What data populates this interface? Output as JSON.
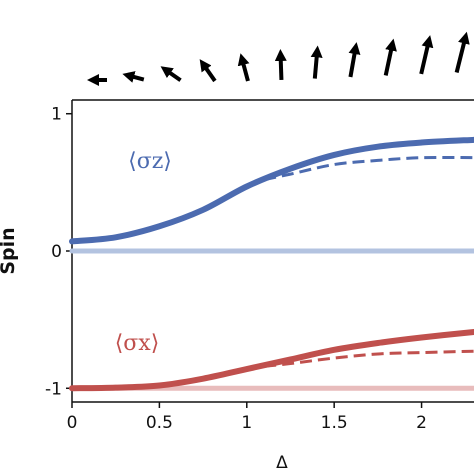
{
  "chart_data": {
    "type": "line",
    "x_label": "Δ",
    "y_label": "Spin",
    "annotations": [
      {
        "text": "⟨σz⟩",
        "color": "#4c6bb0"
      },
      {
        "text": "⟨σx⟩",
        "color": "#c0504d"
      }
    ],
    "xlim": [
      0,
      2.3
    ],
    "ylim": [
      -1.1,
      1.1
    ],
    "xticks": [
      0,
      0.5,
      1,
      1.5,
      2
    ],
    "yticks": [
      -1,
      0,
      1
    ],
    "series": [
      {
        "color": "#b3c3e0",
        "width": 5,
        "dash": false,
        "x": [
          0,
          0.5,
          1,
          1.5,
          2,
          2.3
        ],
        "values": [
          0,
          0,
          0,
          0,
          0,
          0
        ]
      },
      {
        "color": "#e8bcbc",
        "width": 5,
        "dash": false,
        "x": [
          0,
          0.5,
          1,
          1.5,
          2,
          2.3
        ],
        "values": [
          -1,
          -1,
          -1,
          -1,
          -1,
          -1
        ]
      },
      {
        "color": "#4c6bb0",
        "width": 6,
        "dash": false,
        "x": [
          0,
          0.25,
          0.5,
          0.75,
          1,
          1.25,
          1.5,
          1.75,
          2,
          2.3
        ],
        "values": [
          0.07,
          0.1,
          0.18,
          0.3,
          0.47,
          0.6,
          0.7,
          0.76,
          0.79,
          0.81
        ]
      },
      {
        "color": "#4c6bb0",
        "width": 3,
        "dash": true,
        "x": [
          1.1,
          1.25,
          1.5,
          1.75,
          2,
          2.3
        ],
        "values": [
          0.52,
          0.56,
          0.63,
          0.66,
          0.68,
          0.68
        ]
      },
      {
        "color": "#c0504d",
        "width": 6,
        "dash": false,
        "x": [
          0,
          0.25,
          0.5,
          0.75,
          1,
          1.25,
          1.5,
          1.75,
          2,
          2.3
        ],
        "values": [
          -1,
          -0.995,
          -0.98,
          -0.93,
          -0.86,
          -0.79,
          -0.72,
          -0.67,
          -0.63,
          -0.59
        ]
      },
      {
        "color": "#c0504d",
        "width": 3,
        "dash": true,
        "x": [
          1.1,
          1.25,
          1.5,
          1.75,
          2,
          2.3
        ],
        "values": [
          -0.84,
          -0.82,
          -0.78,
          -0.75,
          -0.74,
          -0.73
        ]
      }
    ]
  }
}
